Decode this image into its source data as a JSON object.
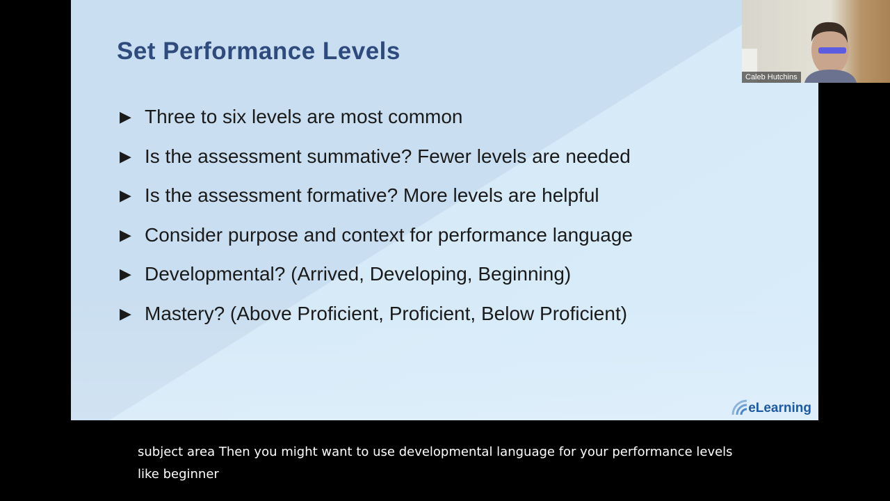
{
  "slide": {
    "title": "Set Performance Levels",
    "bullets": [
      "Three to six levels are most common",
      "Is the assessment summative? Fewer levels are needed",
      "Is the assessment formative? More levels are helpful",
      "Consider purpose and context for performance language",
      "Developmental? (Arrived, Developing, Beginning)",
      "Mastery? (Above Proficient, Proficient, Below Proficient)"
    ],
    "bullet_icon": "play-arrow-icon",
    "logo_text": "eLearning",
    "title_color": "#2f4a7c"
  },
  "webcam": {
    "participant_name": "Caleb Hutchins"
  },
  "caption": {
    "text": "subject area Then you might want to use developmental language for your performance levels like beginner"
  }
}
